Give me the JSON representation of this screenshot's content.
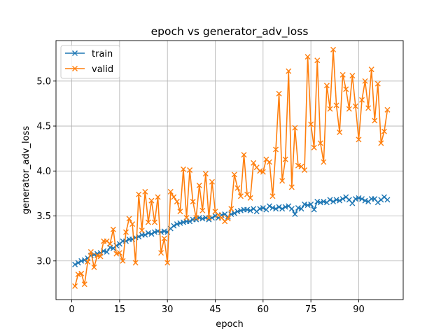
{
  "chart_data": {
    "type": "line",
    "title": "epoch vs generator_adv_loss",
    "xlabel": "epoch",
    "ylabel": "generator_adv_loss",
    "xlim": [
      -4.95,
      103.95
    ],
    "ylim": [
      2.57,
      5.45
    ],
    "xticks": [
      0,
      15,
      30,
      45,
      60,
      75,
      90
    ],
    "yticks": [
      3.0,
      3.5,
      4.0,
      4.5,
      5.0
    ],
    "ytick_labels": [
      "3.0",
      "3.5",
      "4.0",
      "4.5",
      "5.0"
    ],
    "grid": true,
    "legend_position": "top-left",
    "marker": "x",
    "x": [
      1,
      2,
      3,
      4,
      5,
      6,
      7,
      8,
      9,
      10,
      11,
      12,
      13,
      14,
      15,
      16,
      17,
      18,
      19,
      20,
      21,
      22,
      23,
      24,
      25,
      26,
      27,
      28,
      29,
      30,
      31,
      32,
      33,
      34,
      35,
      36,
      37,
      38,
      39,
      40,
      41,
      42,
      43,
      44,
      45,
      46,
      47,
      48,
      49,
      50,
      51,
      52,
      53,
      54,
      55,
      56,
      57,
      58,
      59,
      60,
      61,
      62,
      63,
      64,
      65,
      66,
      67,
      68,
      69,
      70,
      71,
      72,
      73,
      74,
      75,
      76,
      77,
      78,
      79,
      80,
      81,
      82,
      83,
      84,
      85,
      86,
      87,
      88,
      89,
      90,
      91,
      92,
      93,
      94,
      95,
      96,
      97,
      98,
      99
    ],
    "series": [
      {
        "name": "train",
        "color": "#1f77b4",
        "values": [
          2.96,
          2.98,
          3.0,
          3.01,
          3.03,
          3.06,
          3.07,
          3.08,
          3.09,
          3.11,
          3.1,
          3.15,
          3.14,
          3.17,
          3.19,
          3.22,
          3.22,
          3.24,
          3.24,
          3.26,
          3.27,
          3.29,
          3.29,
          3.31,
          3.3,
          3.32,
          3.33,
          3.32,
          3.33,
          3.32,
          3.36,
          3.39,
          3.41,
          3.42,
          3.43,
          3.44,
          3.44,
          3.46,
          3.46,
          3.48,
          3.47,
          3.48,
          3.46,
          3.48,
          3.5,
          3.48,
          3.51,
          3.52,
          3.49,
          3.52,
          3.53,
          3.55,
          3.56,
          3.57,
          3.57,
          3.56,
          3.58,
          3.55,
          3.58,
          3.59,
          3.57,
          3.61,
          3.59,
          3.58,
          3.6,
          3.58,
          3.6,
          3.61,
          3.58,
          3.52,
          3.59,
          3.58,
          3.63,
          3.62,
          3.63,
          3.57,
          3.66,
          3.65,
          3.66,
          3.65,
          3.68,
          3.66,
          3.68,
          3.67,
          3.69,
          3.71,
          3.68,
          3.64,
          3.69,
          3.7,
          3.69,
          3.67,
          3.66,
          3.69,
          3.69,
          3.65,
          3.68,
          3.71,
          3.68
        ]
      },
      {
        "name": "valid",
        "color": "#ff7f0e",
        "values": [
          2.72,
          2.85,
          2.86,
          2.74,
          2.99,
          3.1,
          2.93,
          3.06,
          3.05,
          3.22,
          3.22,
          3.19,
          3.35,
          3.08,
          3.09,
          3.0,
          3.32,
          3.47,
          3.41,
          2.98,
          3.74,
          3.34,
          3.77,
          3.43,
          3.67,
          3.43,
          3.71,
          3.09,
          3.25,
          2.98,
          3.77,
          3.71,
          3.66,
          3.55,
          4.02,
          3.48,
          4.01,
          3.66,
          3.48,
          3.84,
          3.56,
          3.97,
          3.48,
          3.88,
          3.55,
          3.51,
          3.48,
          3.44,
          3.47,
          3.58,
          3.96,
          3.81,
          3.72,
          4.18,
          3.74,
          3.7,
          4.09,
          4.04,
          4.0,
          3.99,
          4.13,
          4.1,
          3.72,
          4.24,
          4.86,
          3.89,
          4.13,
          5.11,
          3.82,
          4.48,
          4.06,
          4.05,
          4.01,
          5.27,
          4.52,
          4.26,
          5.23,
          4.31,
          4.1,
          4.95,
          4.69,
          5.35,
          4.73,
          4.43,
          5.07,
          4.91,
          4.69,
          5.06,
          4.72,
          4.35,
          4.79,
          5.0,
          4.7,
          5.13,
          4.56,
          4.97,
          4.31,
          4.44,
          4.68
        ]
      }
    ]
  }
}
